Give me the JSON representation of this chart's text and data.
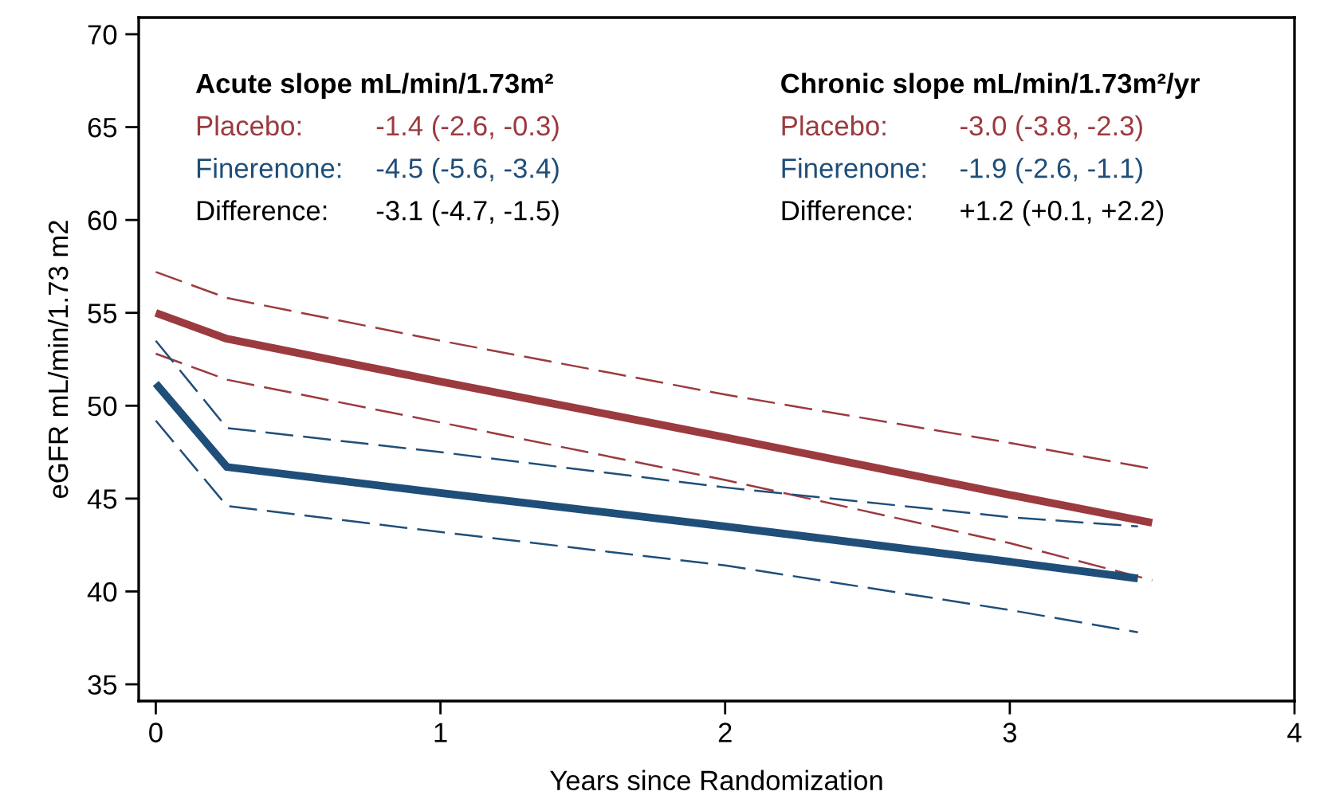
{
  "chart_data": {
    "type": "line",
    "xlabel": "Years since Randomization",
    "ylabel": "eGFR mL/min/1.73 m2",
    "xlim": [
      -0.06,
      4
    ],
    "ylim": [
      34.1,
      70.9
    ],
    "xticks": [
      0,
      1,
      2,
      3,
      4
    ],
    "yticks": [
      35,
      40,
      45,
      50,
      55,
      60,
      65,
      70
    ],
    "grid": false,
    "marker": "none",
    "series": [
      {
        "color": "#9b3a3f",
        "line_style": "solid",
        "x": [
          0,
          0.25,
          1,
          2,
          3,
          3.5
        ],
        "values": [
          55.0,
          53.6,
          51.3,
          48.3,
          45.2,
          43.7
        ]
      },
      {
        "color": "#9b3a3f",
        "line_style": "dashed",
        "x": [
          0,
          0.25,
          1,
          2,
          3,
          3.5
        ],
        "values": [
          52.8,
          51.4,
          49.1,
          46.0,
          42.6,
          40.6
        ]
      },
      {
        "color": "#9b3a3f",
        "line_style": "dashed",
        "x": [
          0,
          0.25,
          1,
          2,
          3,
          3.5
        ],
        "values": [
          57.2,
          55.8,
          53.5,
          50.6,
          48.0,
          46.6
        ]
      },
      {
        "color": "#1f4e79",
        "line_style": "solid",
        "x": [
          0,
          0.25,
          1,
          2,
          3,
          3.45
        ],
        "values": [
          51.2,
          46.7,
          45.3,
          43.5,
          41.6,
          40.7
        ]
      },
      {
        "color": "#1f4e79",
        "line_style": "dashed",
        "x": [
          0,
          0.25,
          1,
          2,
          3,
          3.45
        ],
        "values": [
          49.2,
          44.6,
          43.2,
          41.4,
          39.0,
          37.8
        ]
      },
      {
        "color": "#1f4e79",
        "line_style": "dashed",
        "x": [
          0,
          0.25,
          1,
          2,
          3,
          3.45
        ],
        "values": [
          53.5,
          48.8,
          47.5,
          45.6,
          44.0,
          43.5
        ]
      }
    ],
    "annotations": [
      "Acute slope mL/min/1.73m²",
      "Placebo:",
      "Finerenone:",
      "Difference:",
      "-1.4 (-2.6, -0.3)",
      "-4.5 (-5.6, -3.4)",
      "-3.1 (-4.7, -1.5)",
      "Chronic slope mL/min/1.73m²/yr",
      "Placebo:",
      "Finerenone:",
      "Difference:",
      "-3.0 (-3.8, -2.3)",
      "-1.9 (-2.6, -1.1)",
      "+1.2 (+0.1, +2.2)"
    ]
  }
}
